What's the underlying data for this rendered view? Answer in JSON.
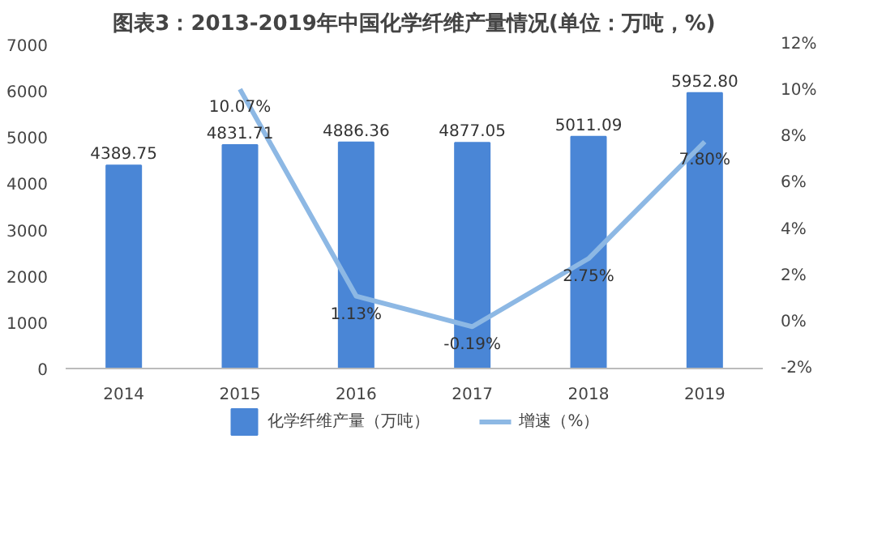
{
  "chart_data": {
    "type": "bar",
    "title": "图表3：2013-2019年中国化学纤维产量情况(单位：万吨，%)",
    "categories": [
      "2014",
      "2015",
      "2016",
      "2017",
      "2018",
      "2019"
    ],
    "series": [
      {
        "name": "化学纤维产量（万吨）",
        "color": "#4a86d6",
        "values": [
          4389.75,
          4831.71,
          4886.36,
          4877.05,
          5011.09,
          5952.8
        ],
        "value_labels": [
          "4389.75",
          "4831.71",
          "4886.36",
          "4877.05",
          "5011.09",
          "5952.80"
        ]
      },
      {
        "name": "增速（%）",
        "type": "line",
        "axis": "y2",
        "color": "#8db8e4",
        "values": [
          null,
          10.07,
          1.13,
          -0.19,
          2.75,
          7.8
        ],
        "value_labels": [
          null,
          "10.07%",
          "1.13%",
          "-0.19%",
          "2.75%",
          "7.80%"
        ]
      }
    ],
    "ylim": [
      0,
      7000
    ],
    "yticks": [
      0,
      1000,
      2000,
      3000,
      4000,
      5000,
      6000,
      7000
    ],
    "y2lim": [
      -2,
      12
    ],
    "y2ticks": [
      {
        "value": -2,
        "label": "-2%"
      },
      {
        "value": 0,
        "label": "0%"
      },
      {
        "value": 2,
        "label": "2%"
      },
      {
        "value": 4,
        "label": "4%"
      },
      {
        "value": 6,
        "label": "6%"
      },
      {
        "value": 8,
        "label": "8%"
      },
      {
        "value": 10,
        "label": "10%"
      },
      {
        "value": 12,
        "label": "12%"
      }
    ],
    "grid": false,
    "legend": "bottom",
    "marker": "none",
    "line_style": "solid"
  }
}
